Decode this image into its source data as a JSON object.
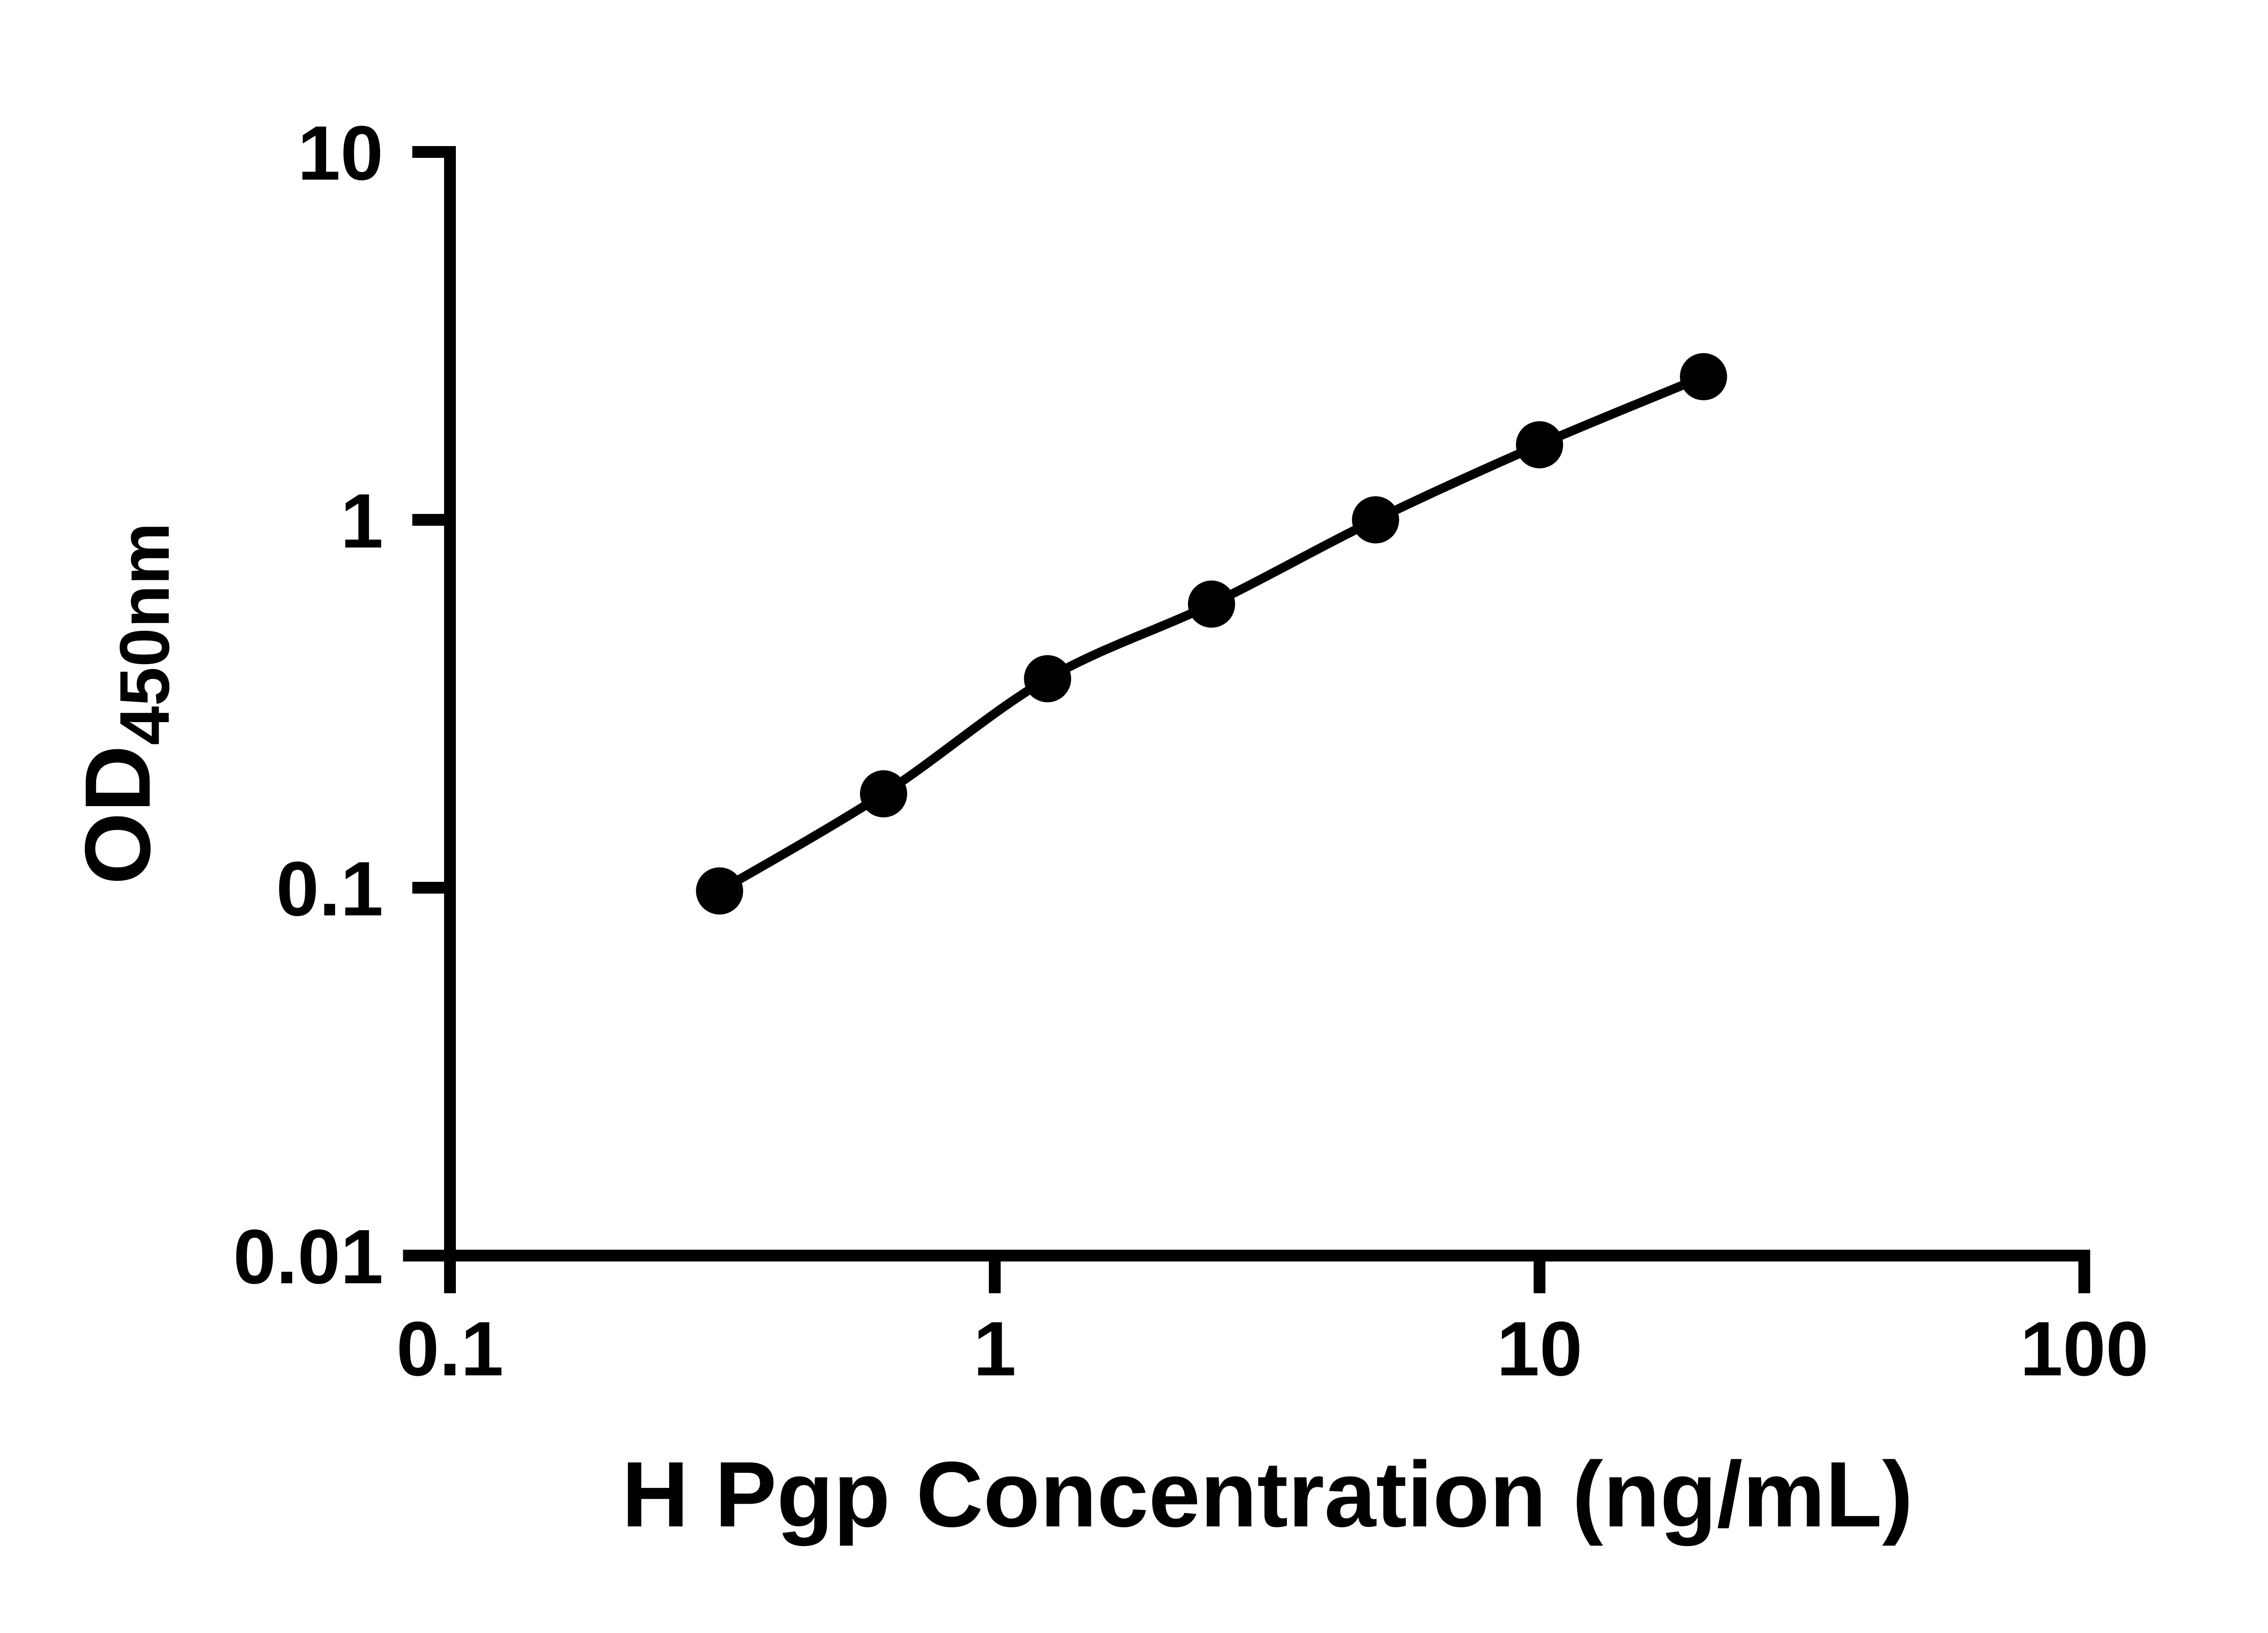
{
  "chart_data": {
    "type": "scatter",
    "subtype": "standard-curve-line-scatter",
    "title": "",
    "xlabel": "H Pgp Concentration (ng/mL)",
    "ylabel": {
      "main": "OD",
      "sub": "450nm"
    },
    "x_scale": "log10",
    "y_scale": "log10",
    "x": [
      0.3125,
      0.625,
      1.25,
      2.5,
      5,
      10,
      20
    ],
    "y": [
      0.098,
      0.18,
      0.37,
      0.59,
      1.0,
      1.6,
      2.45
    ],
    "x_ticks": {
      "values": [
        0.1,
        1,
        10,
        100
      ],
      "labels": [
        "0.1",
        "1",
        "10",
        "100"
      ]
    },
    "y_ticks": {
      "values": [
        10,
        1,
        0.1,
        0.01
      ],
      "labels": [
        "10",
        "1",
        "0.1",
        "0.01"
      ]
    },
    "xlim": [
      0.082,
      102
    ],
    "ylim": [
      0.01,
      10
    ],
    "grid": false,
    "legend": "none",
    "series_color": "#000000",
    "marker_shape": "circle",
    "background_color": "#ffffff"
  }
}
